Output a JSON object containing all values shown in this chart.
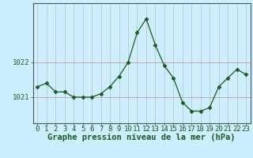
{
  "hours": [
    0,
    1,
    2,
    3,
    4,
    5,
    6,
    7,
    8,
    9,
    10,
    11,
    12,
    13,
    14,
    15,
    16,
    17,
    18,
    19,
    20,
    21,
    22,
    23
  ],
  "pressure": [
    1021.3,
    1021.4,
    1021.15,
    1021.15,
    1021.0,
    1021.0,
    1021.0,
    1021.1,
    1021.3,
    1021.6,
    1022.0,
    1022.85,
    1023.25,
    1022.5,
    1021.9,
    1021.55,
    1020.85,
    1020.6,
    1020.6,
    1020.7,
    1021.3,
    1021.55,
    1021.8,
    1021.65
  ],
  "line_color": "#1a5c1a",
  "marker": "D",
  "marker_size": 2.5,
  "bg_color": "#cceeff",
  "grid_color_v": "#bbbbbb",
  "grid_color_h": "#cc9999",
  "ylabel_ticks": [
    1021,
    1022
  ],
  "xlabel_label": "Graphe pression niveau de la mer (hPa)",
  "xlabel_fontsize": 7.5,
  "tick_fontsize": 6.5,
  "ylim": [
    1020.25,
    1023.7
  ],
  "xlim": [
    -0.5,
    23.5
  ]
}
